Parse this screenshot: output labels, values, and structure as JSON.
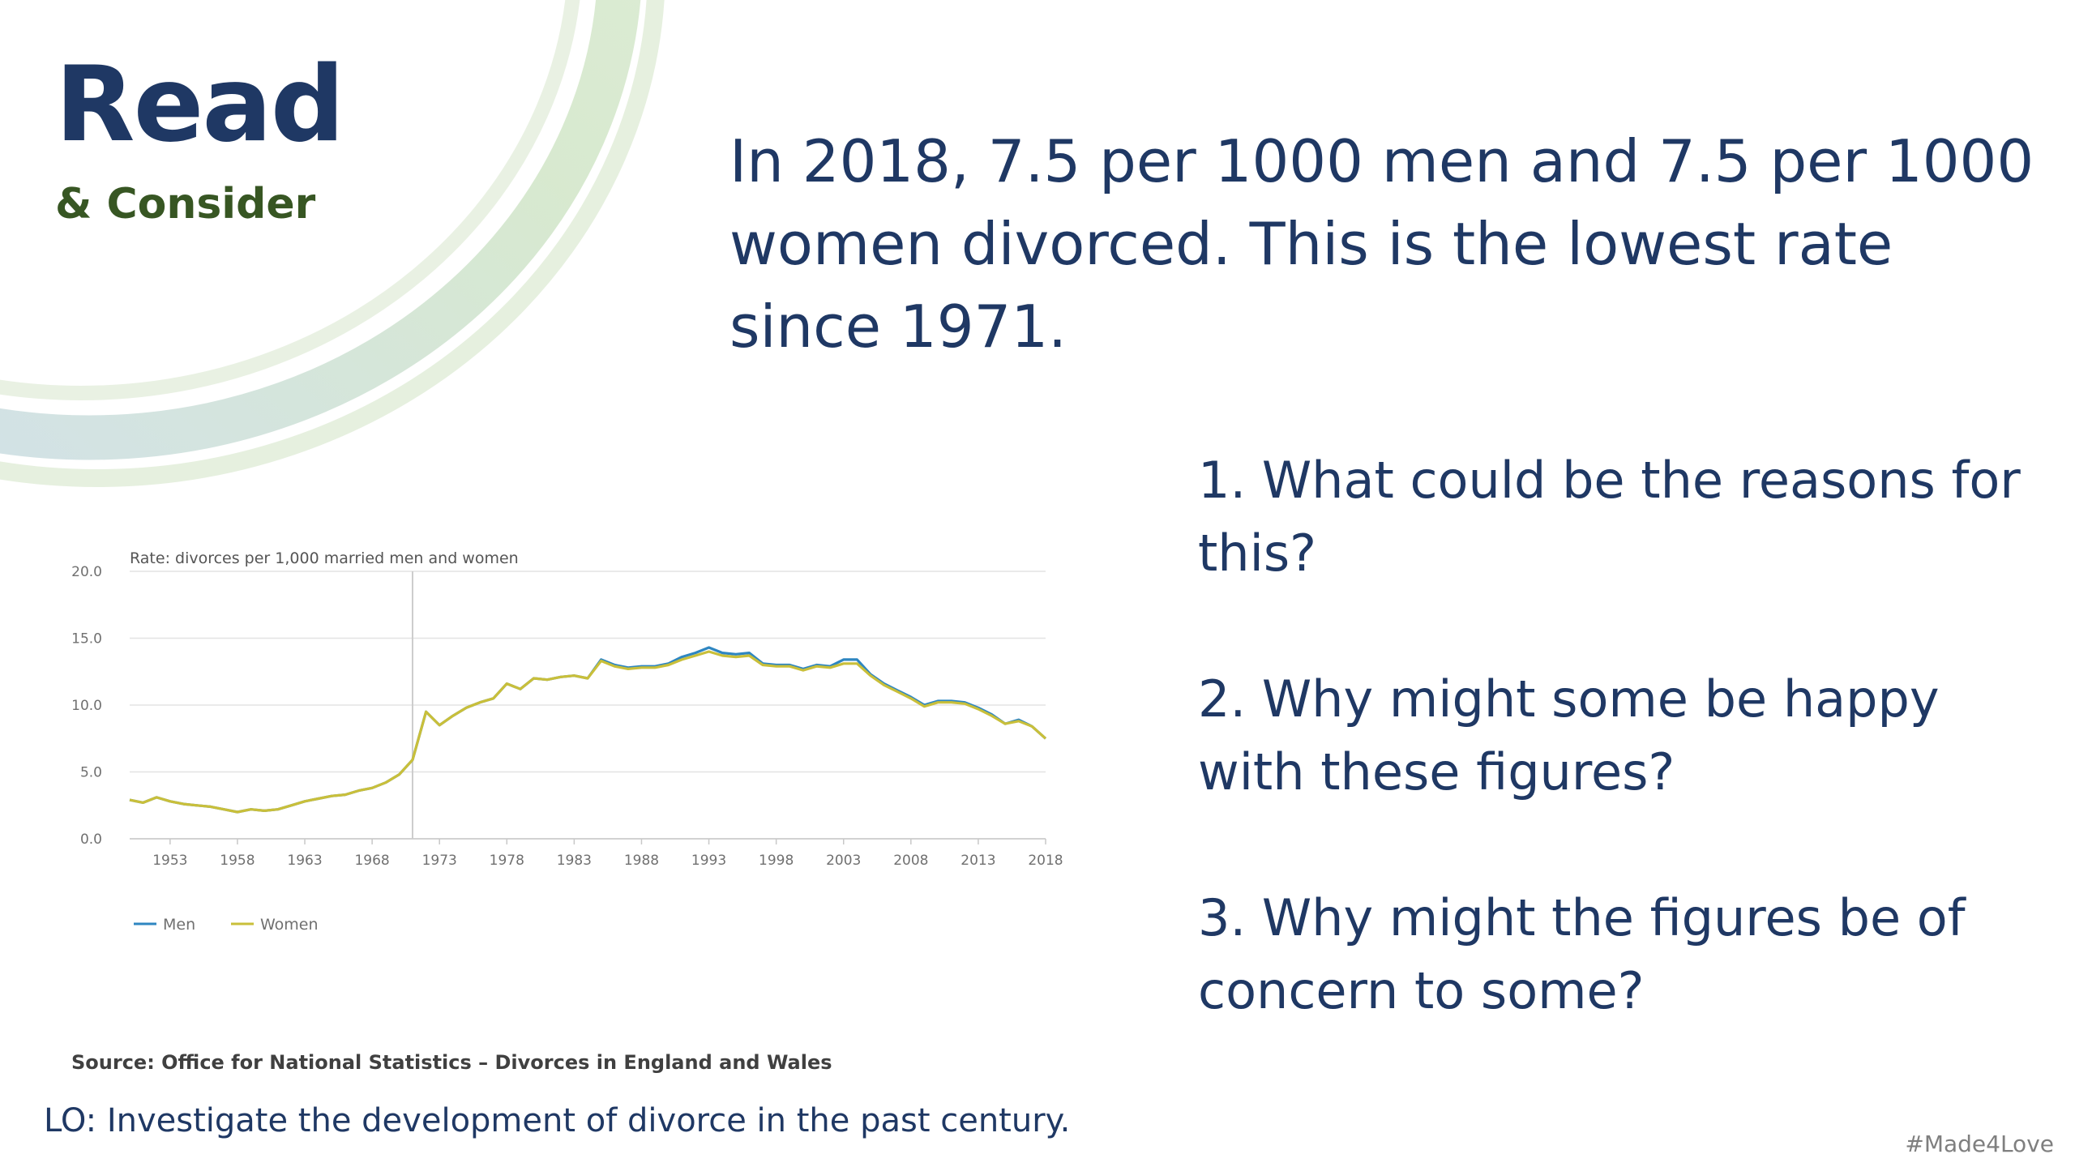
{
  "slide": {
    "title": "Read",
    "subtitle": "& Consider",
    "headline": "In 2018, 7.5 per 1000 men and 7.5 per 1000 women divorced.  This is the lowest rate since 1971.",
    "questions": [
      "1. What could be the reasons for this?",
      "2. Why might some be happy with these figures?",
      "3. Why might the figures be of concern to some?"
    ],
    "source": "Source: Office for National Statistics – Divorces in England and Wales",
    "lo": "LO: Investigate the development of divorce in the past century.",
    "hashtag": "#Made4Love",
    "colors": {
      "navy": "#1f3864",
      "green": "#375623",
      "men": "#2e86c1",
      "women": "#c9bf3a"
    }
  },
  "chart_data": {
    "type": "line",
    "title": "Rate: divorces per 1,000 married men and women",
    "xlabel": "",
    "ylabel": "",
    "xlim": [
      1950,
      2018
    ],
    "ylim": [
      0,
      20
    ],
    "y_ticks": [
      "0.0",
      "5.0",
      "10.0",
      "15.0",
      "20.0"
    ],
    "x_ticks": [
      "1953",
      "1958",
      "1963",
      "1968",
      "1973",
      "1978",
      "1983",
      "1988",
      "1993",
      "1998",
      "2003",
      "2008",
      "2013",
      "2018"
    ],
    "grid": true,
    "reference_line_x": 1971,
    "legend_position": "bottom-left",
    "x": [
      1950,
      1951,
      1952,
      1953,
      1954,
      1955,
      1956,
      1957,
      1958,
      1959,
      1960,
      1961,
      1962,
      1963,
      1964,
      1965,
      1966,
      1967,
      1968,
      1969,
      1970,
      1971,
      1972,
      1973,
      1974,
      1975,
      1976,
      1977,
      1978,
      1979,
      1980,
      1981,
      1982,
      1983,
      1984,
      1985,
      1986,
      1987,
      1988,
      1989,
      1990,
      1991,
      1992,
      1993,
      1994,
      1995,
      1996,
      1997,
      1998,
      1999,
      2000,
      2001,
      2002,
      2003,
      2004,
      2005,
      2006,
      2007,
      2008,
      2009,
      2010,
      2011,
      2012,
      2013,
      2014,
      2015,
      2016,
      2017,
      2018
    ],
    "series": [
      {
        "name": "Men",
        "color": "#2e86c1",
        "values": [
          2.9,
          2.7,
          3.1,
          2.8,
          2.6,
          2.5,
          2.4,
          2.2,
          2.0,
          2.2,
          2.1,
          2.2,
          2.5,
          2.8,
          3.0,
          3.2,
          3.3,
          3.6,
          3.8,
          4.2,
          4.8,
          5.9,
          9.5,
          8.5,
          9.2,
          9.8,
          10.2,
          10.5,
          11.6,
          11.2,
          12.0,
          11.9,
          12.1,
          12.2,
          12.0,
          13.4,
          13.0,
          12.8,
          12.9,
          12.9,
          13.1,
          13.6,
          13.9,
          14.3,
          13.9,
          13.8,
          13.9,
          13.1,
          13.0,
          13.0,
          12.7,
          13.0,
          12.9,
          13.4,
          13.4,
          12.3,
          11.6,
          11.1,
          10.6,
          10.0,
          10.3,
          10.3,
          10.2,
          9.8,
          9.3,
          8.6,
          8.9,
          8.4,
          7.5
        ]
      },
      {
        "name": "Women",
        "color": "#c9bf3a",
        "values": [
          2.9,
          2.7,
          3.1,
          2.8,
          2.6,
          2.5,
          2.4,
          2.2,
          2.0,
          2.2,
          2.1,
          2.2,
          2.5,
          2.8,
          3.0,
          3.2,
          3.3,
          3.6,
          3.8,
          4.2,
          4.8,
          5.9,
          9.5,
          8.5,
          9.2,
          9.8,
          10.2,
          10.5,
          11.6,
          11.2,
          12.0,
          11.9,
          12.1,
          12.2,
          12.0,
          13.3,
          12.9,
          12.7,
          12.8,
          12.8,
          13.0,
          13.4,
          13.7,
          14.0,
          13.7,
          13.6,
          13.7,
          13.0,
          12.9,
          12.9,
          12.6,
          12.9,
          12.8,
          13.1,
          13.1,
          12.2,
          11.5,
          11.0,
          10.5,
          9.9,
          10.2,
          10.2,
          10.1,
          9.7,
          9.2,
          8.6,
          8.8,
          8.4,
          7.5
        ]
      }
    ]
  }
}
